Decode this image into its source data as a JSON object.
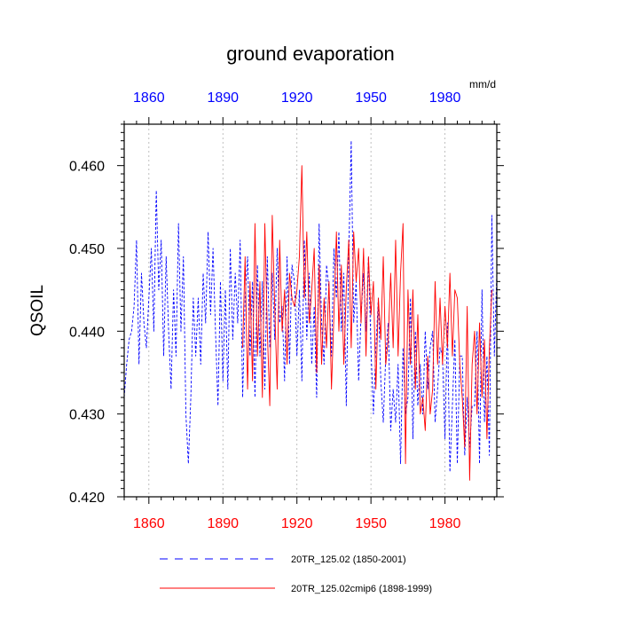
{
  "chart_data": {
    "type": "line",
    "title": "ground evaporation",
    "units": "mm/d",
    "ylabel": "QSOIL",
    "xlabel": "",
    "xlim": [
      1850,
      2001
    ],
    "ylim": [
      0.42,
      0.465
    ],
    "x_ticks": [
      1860,
      1890,
      1920,
      1950,
      1980
    ],
    "x_tick_labels": [
      "1860",
      "1890",
      "1920",
      "1950",
      "1980"
    ],
    "y_ticks": [
      0.42,
      0.43,
      0.44,
      0.45,
      0.46
    ],
    "y_tick_labels": [
      "0.420",
      "0.430",
      "0.440",
      "0.450",
      "0.460"
    ],
    "top_axis_color": "#0000ff",
    "bottom_axis_color": "#ff0000",
    "vertical_gridlines": true,
    "legend_position": "bottom",
    "series": [
      {
        "name": "20TR_125.02 (1850-2001)",
        "color": "#0000ff",
        "dash": "dashed",
        "x_start": 1850,
        "values": [
          0.432,
          0.436,
          0.439,
          0.44,
          0.443,
          0.451,
          0.436,
          0.447,
          0.441,
          0.438,
          0.444,
          0.45,
          0.44,
          0.457,
          0.445,
          0.451,
          0.437,
          0.449,
          0.44,
          0.433,
          0.445,
          0.437,
          0.453,
          0.44,
          0.449,
          0.43,
          0.424,
          0.432,
          0.444,
          0.437,
          0.444,
          0.436,
          0.447,
          0.441,
          0.452,
          0.442,
          0.45,
          0.44,
          0.431,
          0.446,
          0.434,
          0.445,
          0.433,
          0.45,
          0.439,
          0.447,
          0.441,
          0.451,
          0.432,
          0.444,
          0.449,
          0.437,
          0.446,
          0.432,
          0.448,
          0.437,
          0.446,
          0.433,
          0.449,
          0.438,
          0.447,
          0.439,
          0.45,
          0.441,
          0.443,
          0.434,
          0.449,
          0.436,
          0.448,
          0.446,
          0.437,
          0.445,
          0.434,
          0.451,
          0.439,
          0.447,
          0.436,
          0.443,
          0.432,
          0.453,
          0.441,
          0.436,
          0.448,
          0.445,
          0.437,
          0.45,
          0.444,
          0.452,
          0.44,
          0.447,
          0.431,
          0.449,
          0.463,
          0.441,
          0.446,
          0.434,
          0.442,
          0.447,
          0.44,
          0.449,
          0.438,
          0.43,
          0.438,
          0.444,
          0.434,
          0.429,
          0.437,
          0.441,
          0.428,
          0.433,
          0.429,
          0.436,
          0.424,
          0.438,
          0.43,
          0.432,
          0.444,
          0.427,
          0.44,
          0.431,
          0.436,
          0.43,
          0.44,
          0.433,
          0.438,
          0.44,
          0.429,
          0.433,
          0.438,
          0.437,
          0.427,
          0.441,
          0.423,
          0.431,
          0.439,
          0.424,
          0.437,
          0.437,
          0.425,
          0.432,
          0.426,
          0.431,
          0.431,
          0.44,
          0.424,
          0.445,
          0.429,
          0.437,
          0.425,
          0.454,
          0.437,
          0.447
        ]
      },
      {
        "name": "20TR_125.02cmip6 (1898-1999)",
        "color": "#ff0000",
        "dash": "solid",
        "x_start": 1898,
        "values": [
          0.438,
          0.449,
          0.433,
          0.446,
          0.434,
          0.453,
          0.437,
          0.446,
          0.432,
          0.453,
          0.44,
          0.431,
          0.454,
          0.443,
          0.433,
          0.451,
          0.44,
          0.445,
          0.436,
          0.447,
          0.444,
          0.443,
          0.445,
          0.449,
          0.46,
          0.444,
          0.452,
          0.441,
          0.445,
          0.45,
          0.435,
          0.448,
          0.436,
          0.444,
          0.438,
          0.446,
          0.433,
          0.442,
          0.452,
          0.44,
          0.448,
          0.436,
          0.445,
          0.451,
          0.438,
          0.452,
          0.446,
          0.45,
          0.441,
          0.45,
          0.437,
          0.449,
          0.442,
          0.446,
          0.433,
          0.444,
          0.439,
          0.449,
          0.436,
          0.439,
          0.447,
          0.438,
          0.451,
          0.437,
          0.447,
          0.453,
          0.424,
          0.445,
          0.436,
          0.445,
          0.433,
          0.442,
          0.43,
          0.432,
          0.428,
          0.437,
          0.43,
          0.433,
          0.446,
          0.436,
          0.444,
          0.436,
          0.443,
          0.438,
          0.447,
          0.437,
          0.445,
          0.444,
          0.436,
          0.432,
          0.426,
          0.443,
          0.422,
          0.436,
          0.44,
          0.43,
          0.441,
          0.432,
          0.439,
          0.427,
          0.438,
          0.445
        ]
      }
    ]
  }
}
